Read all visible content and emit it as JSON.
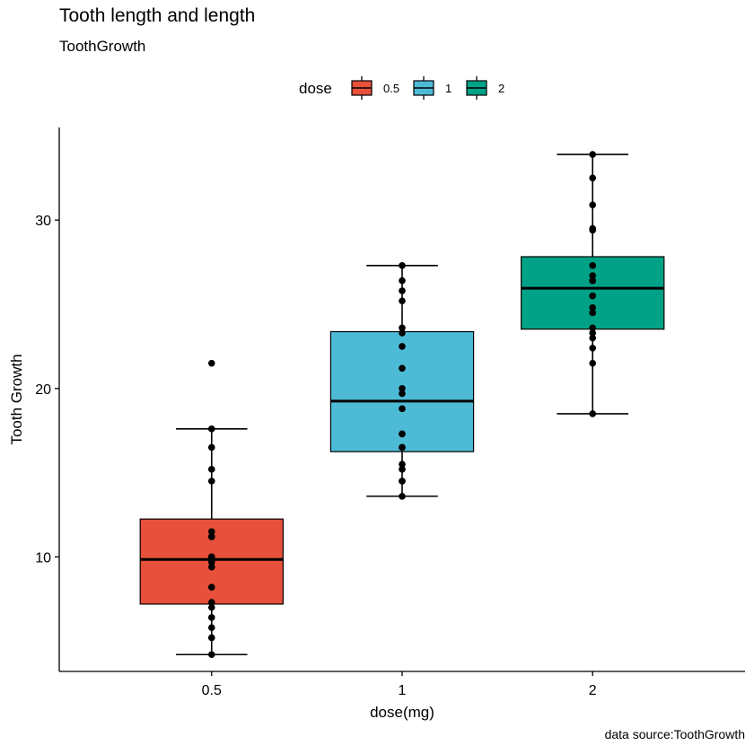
{
  "chart_data": {
    "type": "boxplot",
    "title": "Tooth length and length",
    "subtitle": "ToothGrowth",
    "caption": "data source:ToothGrowth",
    "xlabel": "dose(mg)",
    "ylabel": "Tooth Growth",
    "categories": [
      "0.5",
      "1",
      "2"
    ],
    "ylim": [
      3.2,
      35.5
    ],
    "yticks": [
      10,
      20,
      30
    ],
    "legend": {
      "title": "dose",
      "position": "top",
      "entries": [
        "0.5",
        "1",
        "2"
      ]
    },
    "colors": [
      "#E7503A",
      "#4DBBD6",
      "#00A287"
    ],
    "boxes": [
      {
        "category": "0.5",
        "min": 4.2,
        "q1": 7.2,
        "median": 9.85,
        "q3": 12.25,
        "max": 17.6
      },
      {
        "category": "1",
        "min": 13.6,
        "q1": 16.25,
        "median": 19.25,
        "q3": 23.375,
        "max": 27.3
      },
      {
        "category": "2",
        "min": 18.5,
        "q1": 23.525,
        "median": 25.95,
        "q3": 27.825,
        "max": 33.9
      }
    ],
    "points": [
      [
        4.2,
        11.5,
        7.3,
        5.8,
        6.4,
        10.0,
        11.2,
        11.2,
        5.2,
        7.0,
        15.2,
        21.5,
        17.6,
        9.7,
        14.5,
        10.0,
        8.2,
        9.4,
        16.5,
        9.7
      ],
      [
        16.5,
        16.5,
        15.2,
        17.3,
        22.5,
        17.3,
        13.6,
        14.5,
        18.8,
        15.5,
        19.7,
        23.3,
        23.6,
        26.4,
        20.0,
        25.2,
        25.8,
        21.2,
        14.5,
        27.3
      ],
      [
        23.6,
        18.5,
        33.9,
        25.5,
        26.4,
        32.5,
        26.7,
        21.5,
        23.3,
        29.5,
        25.5,
        26.4,
        22.4,
        24.5,
        24.8,
        30.9,
        26.4,
        27.3,
        29.4,
        23.0
      ]
    ]
  }
}
